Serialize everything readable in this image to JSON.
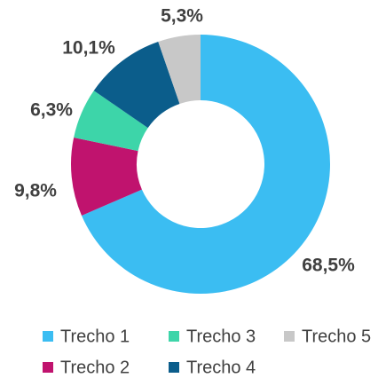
{
  "chart_data": {
    "type": "donut",
    "categories": [
      "Trecho 1",
      "Trecho 2",
      "Trecho 3",
      "Trecho 4",
      "Trecho 5"
    ],
    "values": [
      68.5,
      9.8,
      6.3,
      10.1,
      5.3
    ],
    "value_labels": [
      "68,5%",
      "9,8%",
      "6,3%",
      "10,1%",
      "5,3%"
    ],
    "colors": [
      "#3bbdf2",
      "#c0136e",
      "#3dd5a9",
      "#0b5d8b",
      "#c8c8c8"
    ]
  }
}
